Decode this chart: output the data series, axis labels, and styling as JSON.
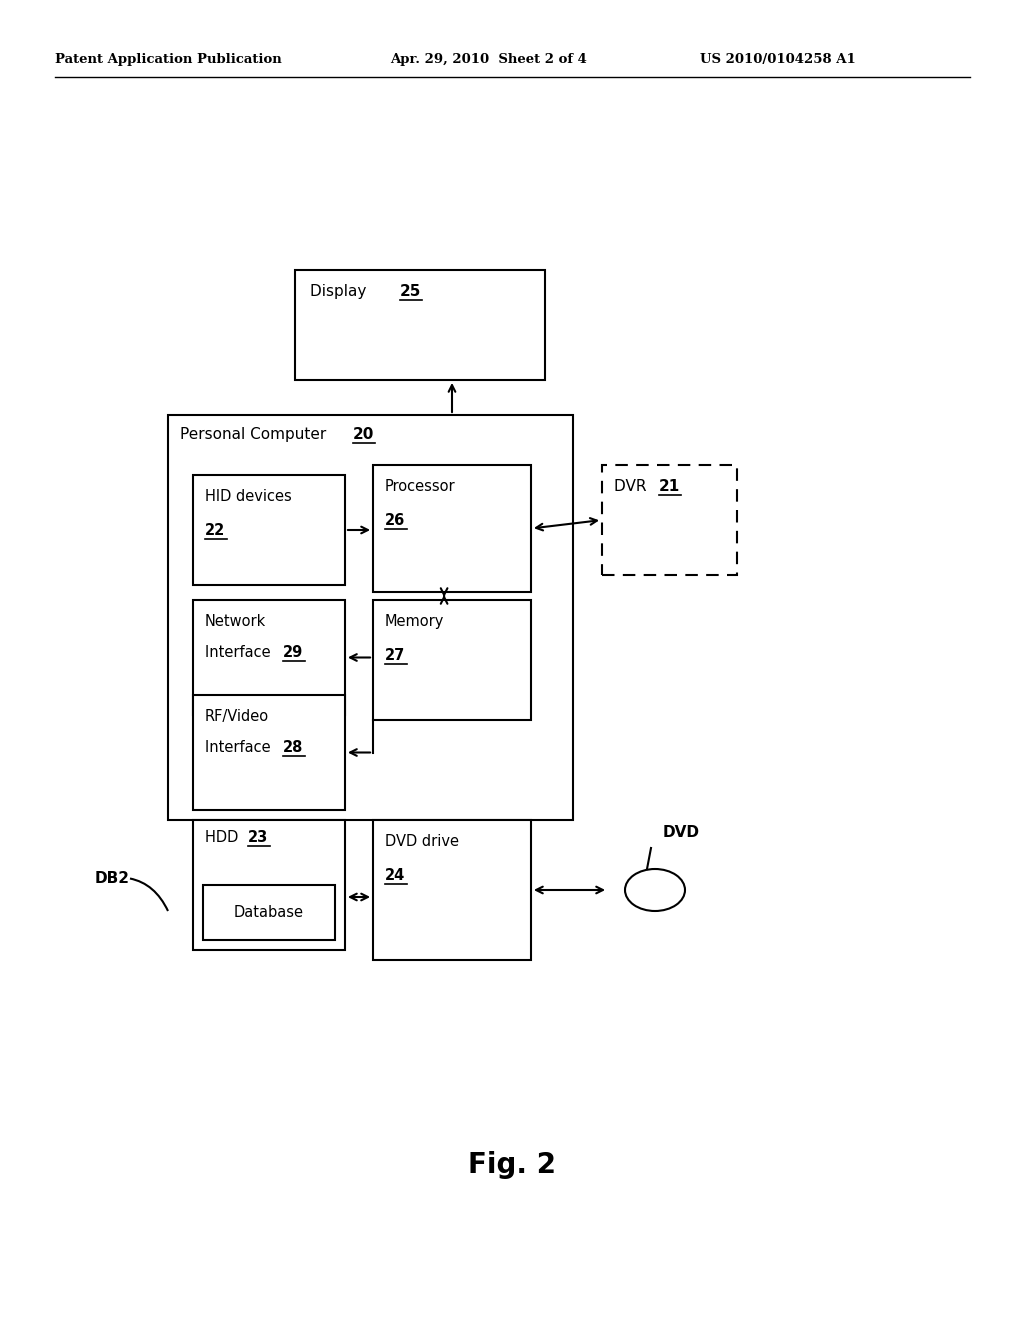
{
  "bg_color": "#ffffff",
  "header_left": "Patent Application Publication",
  "header_mid": "Apr. 29, 2010  Sheet 2 of 4",
  "header_right": "US 2010/0104258 A1",
  "fig_label": "Fig. 2",
  "display_label": "Display",
  "display_num": "25",
  "pc_label": "Personal Computer",
  "pc_num": "20",
  "dvr_label": "DVR",
  "dvr_num": "21",
  "hid_label": "HID devices",
  "hid_num": "22",
  "processor_label": "Processor",
  "processor_num": "26",
  "network_label1": "Network",
  "network_label2": "Interface",
  "network_num": "29",
  "memory_label": "Memory",
  "memory_num": "27",
  "rf_label1": "RF/Video",
  "rf_label2": "Interface",
  "rf_num": "28",
  "hdd_label": "HDD",
  "hdd_num": "23",
  "db_label": "Database",
  "db2_label": "DB2",
  "dvddrive_label": "DVD drive",
  "dvddrive_num": "24",
  "dvd_label": "DVD"
}
